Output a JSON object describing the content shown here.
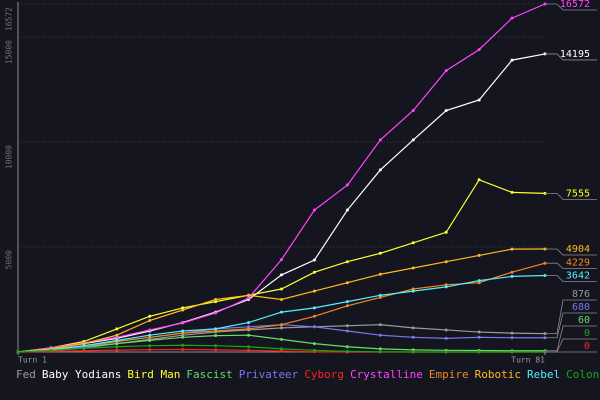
{
  "chart_data": {
    "type": "line",
    "x": [
      1,
      6,
      11,
      16,
      21,
      26,
      31,
      36,
      41,
      46,
      51,
      56,
      61,
      66,
      71,
      76,
      81
    ],
    "xlim": [
      1,
      81
    ],
    "xticks": [
      {
        "value": 1,
        "label": "Turn 1"
      },
      {
        "value": 81,
        "label": "Turn 81"
      }
    ],
    "ylim": [
      0,
      16572
    ],
    "yticks": [
      5000,
      10000,
      15000,
      16572
    ],
    "grid": true,
    "series": [
      {
        "name": "Fed",
        "color": "#9a9a9a",
        "values": [
          0,
          60,
          200,
          400,
          600,
          800,
          950,
          1050,
          1150,
          1200,
          1250,
          1300,
          1150,
          1050,
          950,
          900,
          876
        ]
      },
      {
        "name": "Baby Yodians",
        "color": "#ffffff",
        "values": [
          0,
          170,
          400,
          650,
          1000,
          1400,
          1900,
          2500,
          3670,
          4380,
          6760,
          8670,
          10100,
          11500,
          12000,
          13900,
          14195
        ]
      },
      {
        "name": "Bird Man",
        "color": "#ffff33",
        "values": [
          0,
          200,
          500,
          1100,
          1700,
          2100,
          2400,
          2700,
          3000,
          3800,
          4300,
          4700,
          5200,
          5700,
          8200,
          7600,
          7555
        ]
      },
      {
        "name": "Fascist",
        "color": "#66dd66",
        "values": [
          0,
          100,
          250,
          400,
          550,
          700,
          780,
          800,
          600,
          400,
          250,
          150,
          100,
          80,
          70,
          60,
          60
        ]
      },
      {
        "name": "Privateer",
        "color": "#7777ee",
        "values": [
          0,
          80,
          250,
          500,
          700,
          900,
          1100,
          1200,
          1300,
          1200,
          1000,
          800,
          700,
          650,
          700,
          680,
          680
        ]
      },
      {
        "name": "Cyborg",
        "color": "#ff2222",
        "values": [
          0,
          30,
          60,
          90,
          110,
          120,
          100,
          80,
          40,
          10,
          0,
          0,
          0,
          0,
          0,
          0,
          0
        ]
      },
      {
        "name": "Crystalline",
        "color": "#ff44ff",
        "values": [
          0,
          190,
          430,
          700,
          1050,
          1380,
          1860,
          2570,
          4400,
          6760,
          7950,
          10100,
          11500,
          13400,
          14400,
          15900,
          16572
        ]
      },
      {
        "name": "Empire",
        "color": "#ee8822",
        "values": [
          0,
          120,
          300,
          500,
          700,
          900,
          1000,
          1100,
          1300,
          1700,
          2200,
          2600,
          3000,
          3200,
          3300,
          3800,
          4229
        ]
      },
      {
        "name": "Robotic",
        "color": "#ffbb22",
        "values": [
          0,
          150,
          400,
          800,
          1500,
          2000,
          2500,
          2700,
          2500,
          2900,
          3300,
          3700,
          4000,
          4300,
          4600,
          4900,
          4904
        ]
      },
      {
        "name": "Rebel",
        "color": "#55eeff",
        "values": [
          0,
          100,
          300,
          550,
          800,
          1000,
          1100,
          1400,
          1900,
          2100,
          2400,
          2700,
          2900,
          3100,
          3400,
          3600,
          3642
        ]
      },
      {
        "name": "Colonial",
        "color": "#11aa11",
        "values": [
          0,
          80,
          180,
          250,
          300,
          320,
          300,
          250,
          150,
          80,
          30,
          10,
          0,
          0,
          0,
          0,
          0
        ]
      }
    ]
  }
}
